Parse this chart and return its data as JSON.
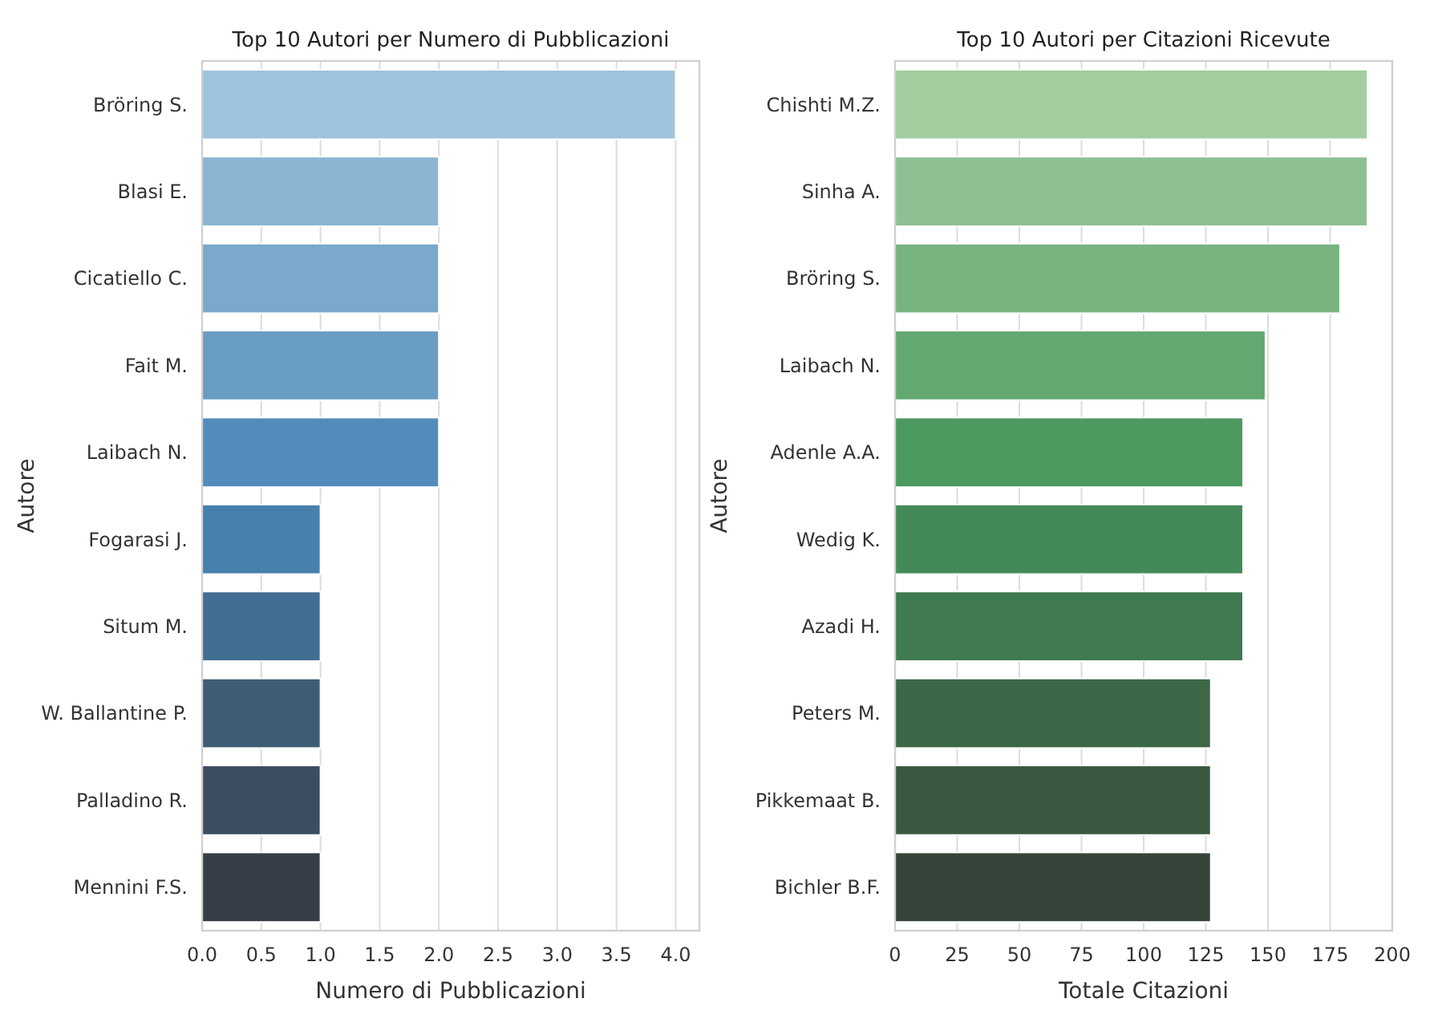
{
  "chart_data": [
    {
      "type": "bar",
      "orientation": "horizontal",
      "title": "Top 10 Autori per Numero di Pubblicazioni",
      "xlabel": "Numero di Pubblicazioni",
      "ylabel": "Autore",
      "categories": [
        "Bröring S.",
        "Blasi E.",
        "Cicatiello C.",
        "Fait M.",
        "Laibach N.",
        "Fogarasi J.",
        "Situm M.",
        "W. Ballantine P.",
        "Palladino R.",
        "Mennini F.S."
      ],
      "values": [
        4,
        2,
        2,
        2,
        2,
        1,
        1,
        1,
        1,
        1
      ],
      "colors": [
        "#9dc4dc",
        "#8bb6d3",
        "#7aa9cb",
        "#6a9dc4",
        "#538cbc",
        "#4780ad",
        "#416e92",
        "#3d5d77",
        "#3a4e60",
        "#363f47"
      ],
      "xlim": [
        0,
        4.2
      ],
      "xticks": [
        {
          "value": 0,
          "label": "0.0"
        },
        {
          "value": 0.5,
          "label": "0.5"
        },
        {
          "value": 1,
          "label": "1.0"
        },
        {
          "value": 1.5,
          "label": "1.5"
        },
        {
          "value": 2,
          "label": "2.0"
        },
        {
          "value": 2.5,
          "label": "2.5"
        },
        {
          "value": 3,
          "label": "3.0"
        },
        {
          "value": 3.5,
          "label": "3.5"
        },
        {
          "value": 4,
          "label": "4.0"
        }
      ],
      "grid": "x"
    },
    {
      "type": "bar",
      "orientation": "horizontal",
      "title": "Top 10 Autori per Citazioni Ricevute",
      "xlabel": "Totale Citazioni",
      "ylabel": "Autore",
      "categories": [
        "Chishti M.Z.",
        "Sinha A.",
        "Bröring S.",
        "Laibach N.",
        "Adenle A.A.",
        "Wedig K.",
        "Azadi H.",
        "Peters M.",
        "Pikkemaat B.",
        "Bichler B.F."
      ],
      "values": [
        190,
        190,
        179,
        149,
        140,
        140,
        140,
        127,
        127,
        127
      ],
      "colors": [
        "#a2cd9f",
        "#8dc193",
        "#78b380",
        "#63a871",
        "#4c9a60",
        "#448a58",
        "#3f7a51",
        "#3c6847",
        "#3a5840",
        "#364539"
      ],
      "xlim": [
        0,
        200
      ],
      "xticks": [
        0,
        25,
        50,
        75,
        100,
        125,
        150,
        175,
        200
      ],
      "grid": "x"
    }
  ]
}
